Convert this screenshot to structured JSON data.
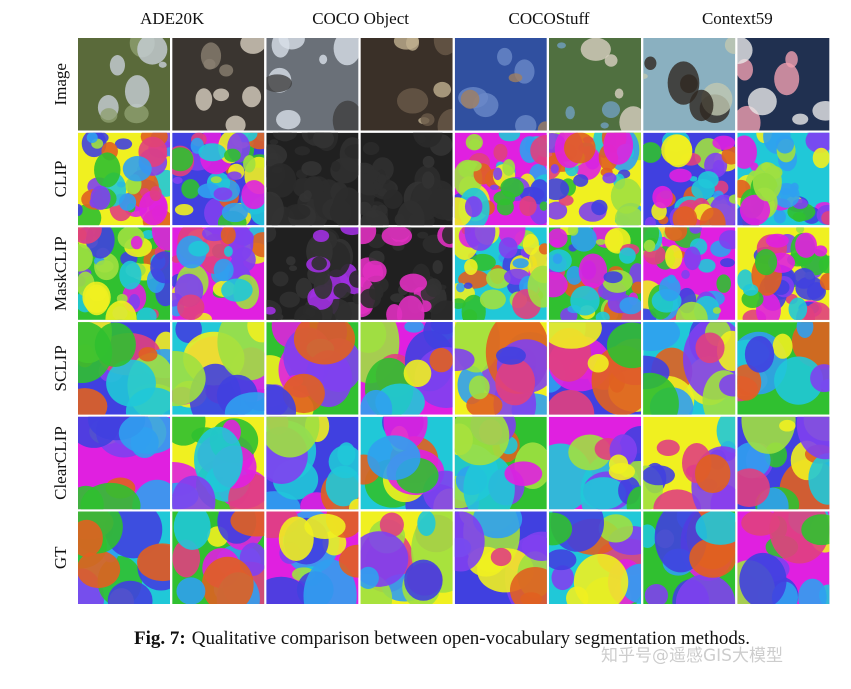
{
  "figure": {
    "columns": [
      "ADE20K",
      "COCO Object",
      "COCOStuff",
      "Context59"
    ],
    "rows": [
      "Image",
      "CLIP",
      "MaskCLIP",
      "SCLIP",
      "ClearCLIP",
      "GT"
    ],
    "caption": {
      "label": "Fig. 7:",
      "text": "Qualitative comparison between open-vocabulary segmentation methods."
    },
    "watermark": "知乎号@遥感GIS大模型"
  }
}
